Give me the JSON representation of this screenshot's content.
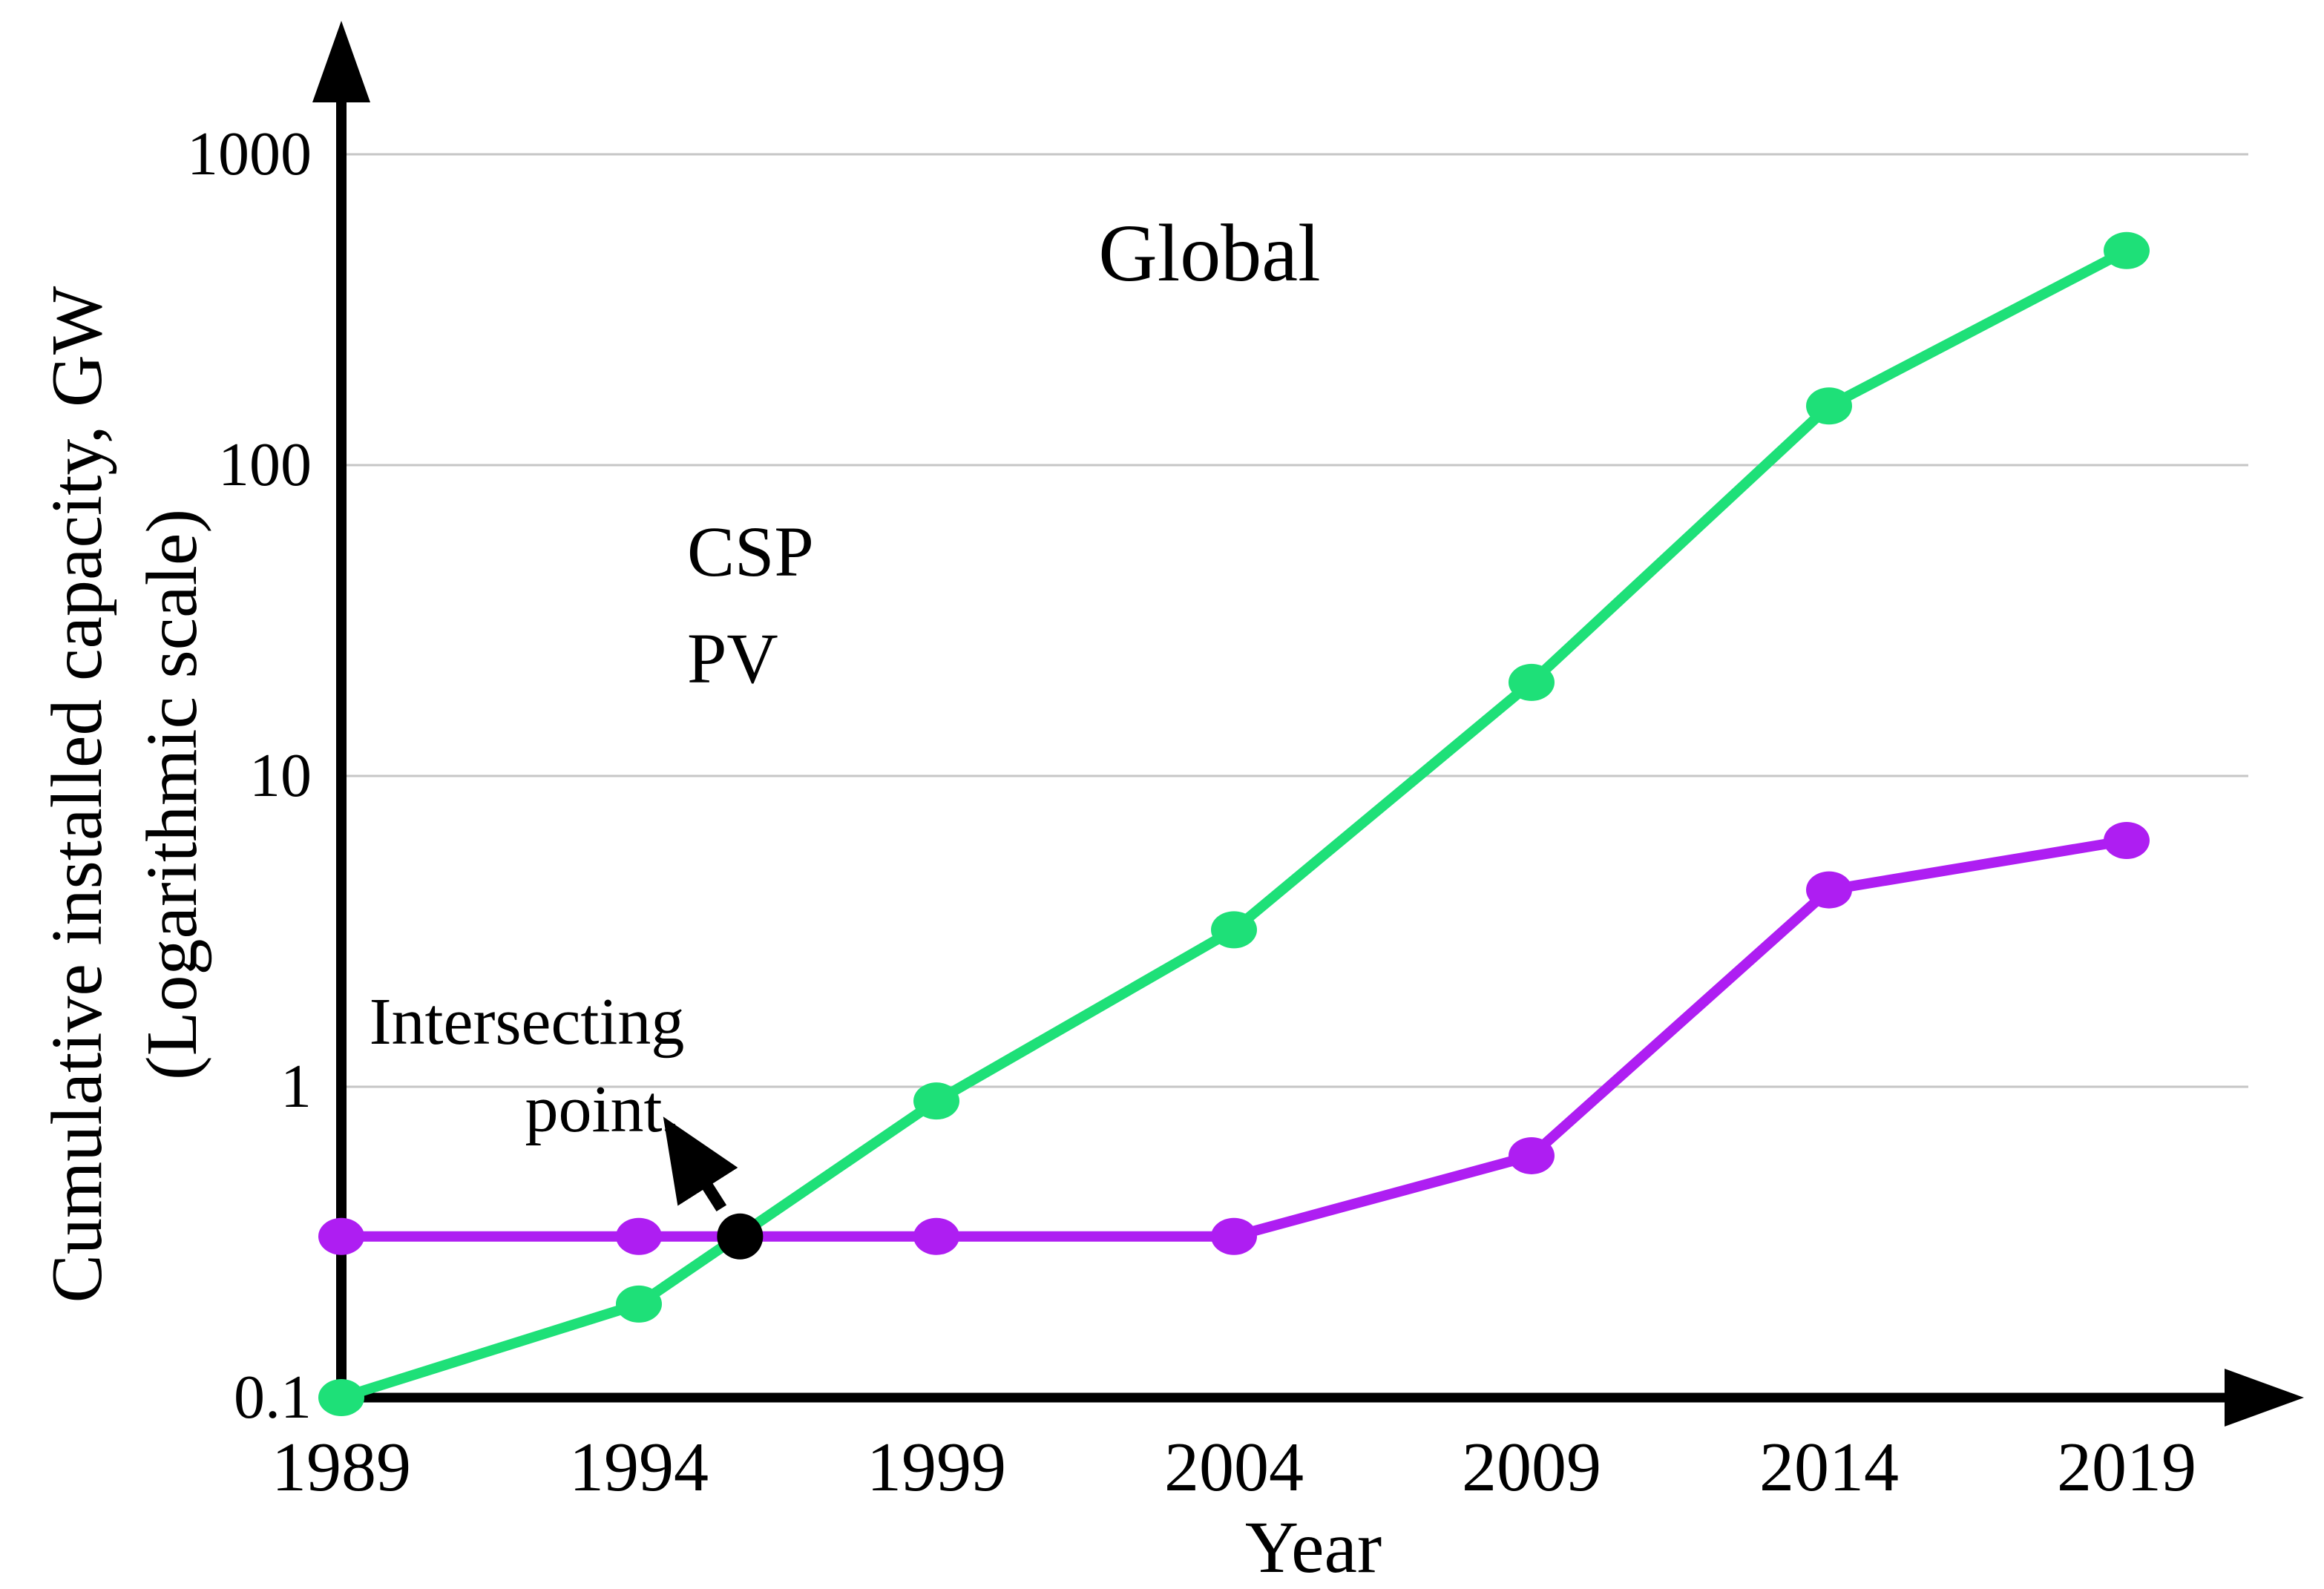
{
  "title": "Global",
  "y_axis_label_line1": "Cumulative installed capacity, GW",
  "y_axis_label_line2": "(Logarithmic scale)",
  "x_axis_label": "Year",
  "annotation": {
    "line1": "Intersecting",
    "line2": "point"
  },
  "legend": [
    {
      "name": "CSP",
      "color": "#AE1EF2"
    },
    {
      "name": "PV",
      "color": "#1EE078"
    }
  ],
  "colors": {
    "csp": "#AE1EF2",
    "pv": "#1EE078",
    "axis": "#000000",
    "gridline": "#C6C6C6",
    "intersection_marker": "#000000"
  },
  "chart_data": {
    "type": "line",
    "title": "Global",
    "xlabel": "Year",
    "ylabel": "Cumulative installed capacity, GW (Logarithmic scale)",
    "x": [
      1989,
      1994,
      1999,
      2004,
      2009,
      2014,
      2019
    ],
    "x_tick_labels": [
      "1989",
      "1994",
      "1999",
      "2004",
      "2009",
      "2014",
      "2019"
    ],
    "y_scale": "log10",
    "ylim": [
      0.1,
      1000
    ],
    "y_tick_values": [
      1000,
      100,
      10,
      1,
      0.1
    ],
    "y_tick_labels": [
      "1000",
      "100",
      "10",
      "1",
      "0.1"
    ],
    "grid": "horizontal-decades",
    "legend_position": "upper-left-inside",
    "series": [
      {
        "name": "CSP",
        "color": "#AE1EF2",
        "values": [
          0.33,
          0.33,
          0.33,
          0.33,
          0.6,
          4.3,
          6.2
        ]
      },
      {
        "name": "PV",
        "color": "#1EE078",
        "values": [
          0.1,
          0.2,
          0.9,
          3.2,
          20,
          155,
          490
        ]
      }
    ],
    "annotations": [
      {
        "text": "Intersecting point",
        "note": "arrow points to where PV line crosses flat CSP line",
        "target_x": 1995.7,
        "target_value": 0.33
      }
    ]
  }
}
